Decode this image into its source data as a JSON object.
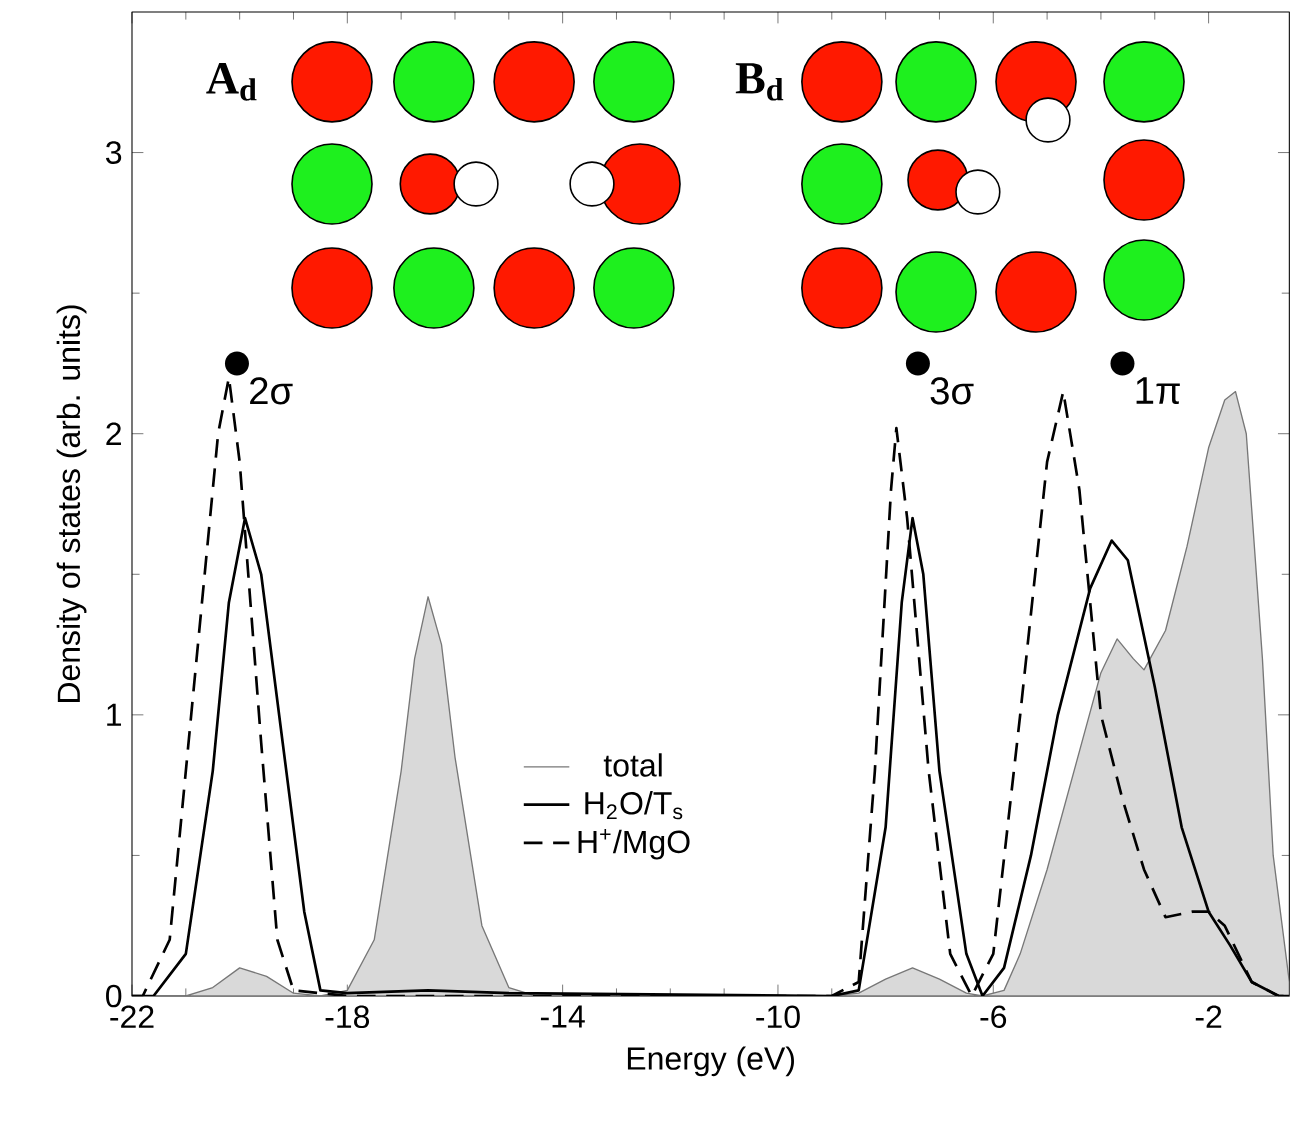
{
  "chart_data": {
    "type": "line",
    "xlabel": "Energy (eV)",
    "ylabel": "Density of states (arb. units)",
    "xlim": [
      -22,
      -0.5
    ],
    "ylim": [
      0,
      3.5
    ],
    "xticks": [
      -22,
      -18,
      -14,
      -10,
      -6,
      -2
    ],
    "yticks": [
      0,
      1,
      2,
      3
    ],
    "legend": "bottom",
    "grid": false,
    "annotations": [
      {
        "text": "2σ",
        "x": -20.05,
        "y": 2.25
      },
      {
        "text": "3σ",
        "x": -7.4,
        "y": 2.25
      },
      {
        "text": "1π",
        "x": -3.6,
        "y": 2.25
      },
      "A$_{d}$",
      "B$_{d}$"
    ],
    "series": [
      {
        "name": "total",
        "type": "area",
        "color": "#d9d9d9",
        "line_style": "solid",
        "x": [
          -22,
          -21,
          -20.5,
          -20,
          -19.5,
          -19,
          -18.5,
          -18,
          -17.5,
          -17,
          -16.75,
          -16.5,
          -16.25,
          -16,
          -15.5,
          -15,
          -14.5,
          -9,
          -8.5,
          -8,
          -7.5,
          -7,
          -6.5,
          -6.2,
          -5.8,
          -5.5,
          -5,
          -4.5,
          -4,
          -3.7,
          -3.4,
          -3.2,
          -2.8,
          -2.4,
          -2,
          -1.7,
          -1.5,
          -1.3,
          -1,
          -0.8,
          -0.5
        ],
        "values": [
          0,
          0,
          0.03,
          0.1,
          0.07,
          0.01,
          0,
          0.02,
          0.2,
          0.8,
          1.2,
          1.42,
          1.25,
          0.85,
          0.25,
          0.03,
          0,
          0,
          0.01,
          0.06,
          0.1,
          0.06,
          0.01,
          0,
          0.02,
          0.15,
          0.45,
          0.8,
          1.15,
          1.27,
          1.2,
          1.16,
          1.3,
          1.6,
          1.95,
          2.12,
          2.15,
          2.0,
          1.2,
          0.5,
          0.05
        ]
      },
      {
        "name": "H$_{2}$O/T$_{s}$",
        "color": "#000000",
        "line_style": "solid",
        "x": [
          -22,
          -21.6,
          -21,
          -20.5,
          -20.2,
          -19.9,
          -19.6,
          -19.2,
          -18.8,
          -18.5,
          -18,
          -16.5,
          -15,
          -9,
          -8.5,
          -8,
          -7.7,
          -7.5,
          -7.3,
          -7,
          -6.5,
          -6.2,
          -5.8,
          -5.3,
          -4.8,
          -4.2,
          -3.8,
          -3.5,
          -3,
          -2.5,
          -2,
          -1.6,
          -1.2,
          -0.7,
          -0.5
        ],
        "values": [
          0,
          0,
          0.15,
          0.8,
          1.4,
          1.7,
          1.5,
          0.9,
          0.3,
          0.02,
          0.01,
          0.02,
          0.01,
          0,
          0.02,
          0.6,
          1.4,
          1.7,
          1.5,
          0.8,
          0.15,
          0,
          0.1,
          0.5,
          1.0,
          1.45,
          1.62,
          1.55,
          1.1,
          0.6,
          0.3,
          0.18,
          0.05,
          0,
          0
        ]
      },
      {
        "name": "H$^{+}$/MgO",
        "color": "#000000",
        "line_style": "dashed",
        "x": [
          -22,
          -21.8,
          -21.3,
          -20.8,
          -20.4,
          -20.2,
          -20,
          -19.6,
          -19.3,
          -19,
          -18,
          -9,
          -8.5,
          -8.2,
          -7.9,
          -7.8,
          -7.6,
          -7.2,
          -6.8,
          -6.4,
          -6,
          -5.5,
          -5,
          -4.7,
          -4.4,
          -4,
          -3.6,
          -3.2,
          -2.8,
          -2.3,
          -2,
          -1.7,
          -1.2,
          -0.7,
          -0.5
        ],
        "values": [
          0,
          0,
          0.2,
          1.2,
          2.0,
          2.2,
          1.9,
          0.9,
          0.2,
          0.02,
          0,
          0,
          0.05,
          0.8,
          1.8,
          2.02,
          1.7,
          0.8,
          0.15,
          0,
          0.15,
          1.0,
          1.9,
          2.15,
          1.8,
          1.0,
          0.7,
          0.45,
          0.28,
          0.3,
          0.3,
          0.25,
          0.05,
          0,
          0
        ]
      }
    ]
  }
}
